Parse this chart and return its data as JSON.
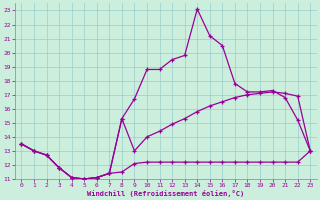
{
  "xlabel": "Windchill (Refroidissement éolien,°C)",
  "background_color": "#cceedd",
  "grid_color": "#99cccc",
  "line_color": "#990099",
  "xlim": [
    -0.5,
    23.5
  ],
  "ylim": [
    11,
    23.5
  ],
  "xticks": [
    0,
    1,
    2,
    3,
    4,
    5,
    6,
    7,
    8,
    9,
    10,
    11,
    12,
    13,
    14,
    15,
    16,
    17,
    18,
    19,
    20,
    21,
    22,
    23
  ],
  "yticks": [
    11,
    12,
    13,
    14,
    15,
    16,
    17,
    18,
    19,
    20,
    21,
    22,
    23
  ],
  "series1_x": [
    0,
    1,
    2,
    3,
    4,
    5,
    6,
    7,
    8,
    9,
    10,
    11,
    12,
    13,
    14,
    15,
    16,
    17,
    18,
    19,
    20,
    21,
    22,
    23
  ],
  "series1_y": [
    13.5,
    13.0,
    12.7,
    11.8,
    11.1,
    11.0,
    11.1,
    11.4,
    11.5,
    12.1,
    12.2,
    12.2,
    12.2,
    12.2,
    12.2,
    12.2,
    12.2,
    12.2,
    12.2,
    12.2,
    12.2,
    12.2,
    12.2,
    13.0
  ],
  "series2_x": [
    0,
    1,
    2,
    3,
    4,
    5,
    6,
    7,
    8,
    9,
    10,
    11,
    12,
    13,
    14,
    15,
    16,
    17,
    18,
    19,
    20,
    21,
    22,
    23
  ],
  "series2_y": [
    13.5,
    13.0,
    12.7,
    11.8,
    11.1,
    11.0,
    11.1,
    11.4,
    15.3,
    13.0,
    14.0,
    14.4,
    14.9,
    15.3,
    15.8,
    16.2,
    16.5,
    16.8,
    17.0,
    17.1,
    17.2,
    17.1,
    16.9,
    13.0
  ],
  "series3_x": [
    0,
    1,
    2,
    3,
    4,
    5,
    6,
    7,
    8,
    9,
    10,
    11,
    12,
    13,
    14,
    15,
    16,
    17,
    18,
    19,
    20,
    21,
    22,
    23
  ],
  "series3_y": [
    13.5,
    13.0,
    12.7,
    11.8,
    11.1,
    11.0,
    11.1,
    11.4,
    15.3,
    16.7,
    18.8,
    18.8,
    19.5,
    19.8,
    23.1,
    21.2,
    20.5,
    17.8,
    17.2,
    17.2,
    17.3,
    16.8,
    15.2,
    13.0
  ]
}
